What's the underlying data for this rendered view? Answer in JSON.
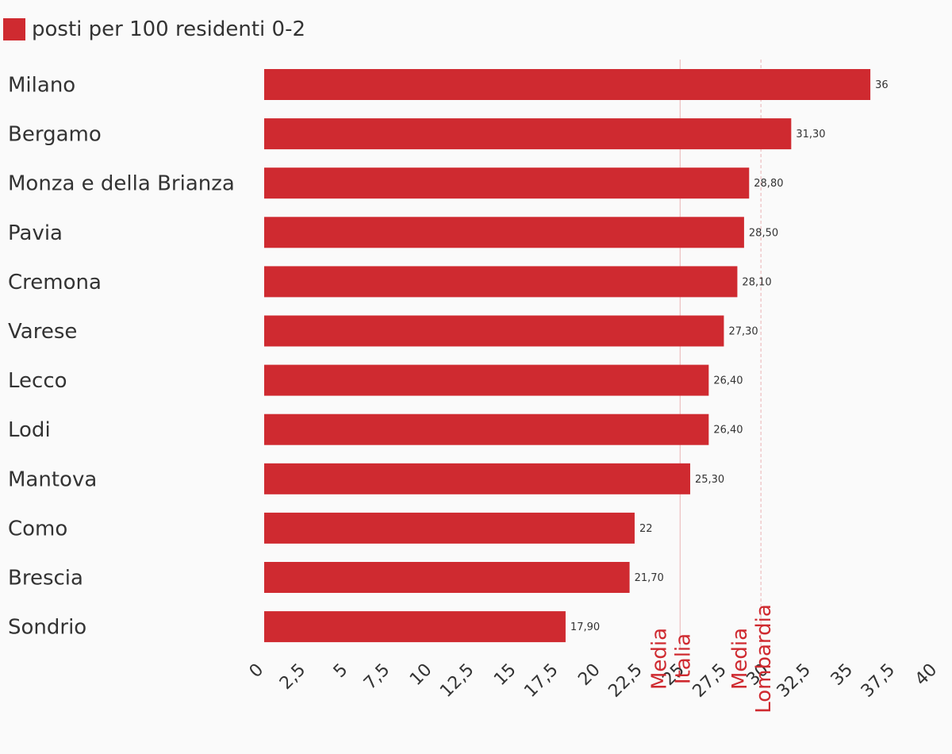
{
  "colors": {
    "bar": "#cf2a30",
    "text": "#333333",
    "reference": "#cf2a30",
    "background": "#fafafa"
  },
  "legend": {
    "label": "posti per 100 residenti 0-2",
    "position": "top-left"
  },
  "chart_data": {
    "type": "bar",
    "orientation": "horizontal",
    "categories": [
      "Milano",
      "Bergamo",
      "Monza e della Brianza",
      "Pavia",
      "Cremona",
      "Varese",
      "Lecco",
      "Lodi",
      "Mantova",
      "Como",
      "Brescia",
      "Sondrio"
    ],
    "series": [
      {
        "name": "posti per 100 residenti 0-2",
        "values": [
          36,
          31.3,
          28.8,
          28.5,
          28.1,
          27.3,
          26.4,
          26.4,
          25.3,
          22,
          21.7,
          17.9
        ],
        "labels": [
          "36",
          "31,30",
          "28,80",
          "28,50",
          "28,10",
          "27,30",
          "26,40",
          "26,40",
          "25,30",
          "22",
          "21,70",
          "17,90"
        ]
      }
    ],
    "xlim": [
      0,
      40
    ],
    "xticks": [
      0,
      2.5,
      5,
      7.5,
      10,
      12.5,
      15,
      17.5,
      20,
      22.5,
      25,
      27.5,
      30,
      32.5,
      35,
      37.5,
      40
    ],
    "xtick_labels": [
      "0",
      "2,5",
      "5",
      "7,5",
      "10",
      "12,5",
      "15",
      "17,5",
      "20",
      "22,5",
      "25",
      "27,5",
      "30",
      "32,5",
      "35",
      "37,5",
      "40"
    ],
    "title": "",
    "xlabel": "",
    "ylabel": "",
    "grid": false,
    "reference_lines": [
      {
        "value": 24.7,
        "label_lines": [
          "Media",
          "Italia"
        ],
        "style": "solid"
      },
      {
        "value": 29.5,
        "label_lines": [
          "Media",
          "Lombardia"
        ],
        "style": "dashed"
      }
    ]
  }
}
